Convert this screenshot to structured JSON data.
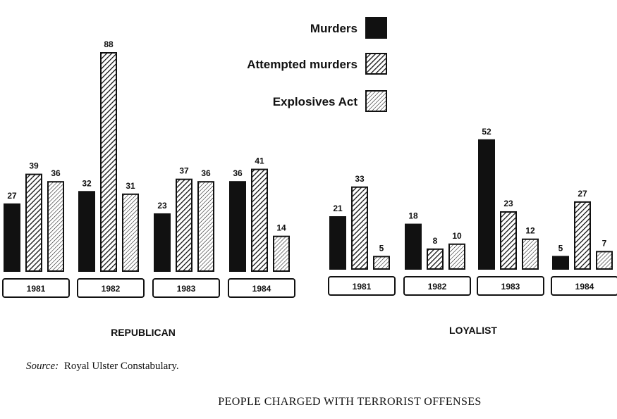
{
  "chart_data": {
    "type": "bar",
    "title": "PEOPLE CHARGED WITH TERRORIST OFFENSES",
    "source_label": "Source:",
    "source_text": "Royal Ulster Constabulary.",
    "legend": [
      "Murders",
      "Attempted murders",
      "Explosives Act"
    ],
    "legend_placement": "top-center",
    "groups": [
      {
        "name": "REPUBLICAN",
        "categories": [
          "1981",
          "1982",
          "1983",
          "1984"
        ],
        "series": [
          {
            "name": "Murders",
            "values": [
              27,
              32,
              23,
              36
            ]
          },
          {
            "name": "Attempted murders",
            "values": [
              39,
              88,
              37,
              41
            ]
          },
          {
            "name": "Explosives Act",
            "values": [
              36,
              31,
              36,
              14
            ]
          }
        ]
      },
      {
        "name": "LOYALIST",
        "categories": [
          "1981",
          "1982",
          "1983",
          "1984"
        ],
        "series": [
          {
            "name": "Murders",
            "values": [
              21,
              18,
              52,
              5
            ]
          },
          {
            "name": "Attempted murders",
            "values": [
              33,
              8,
              23,
              27
            ]
          },
          {
            "name": "Explosives Act",
            "values": [
              5,
              10,
              12,
              7
            ]
          }
        ]
      }
    ],
    "ylim": [
      0,
      88
    ],
    "grid": false,
    "colors": {
      "ink": "#111111",
      "background": "#ffffff"
    }
  }
}
